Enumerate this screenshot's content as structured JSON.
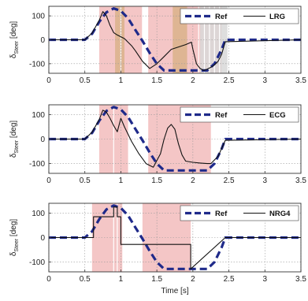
{
  "chart_data": [
    {
      "type": "line",
      "ylabel": "δ_Steer [deg]",
      "ylabel_main": "δ",
      "ylabel_sub": "Steer",
      "ylabel_unit": " [deg]",
      "xlim": [
        0,
        3.5
      ],
      "ylim": [
        -140,
        140
      ],
      "xticks": [
        "0",
        "0.5",
        "1",
        "1.5",
        "2",
        "2.5",
        "3",
        "3.5"
      ],
      "yticks": [
        "100",
        "0",
        "-100"
      ],
      "legend": {
        "position": "top-right",
        "entries": [
          "Ref",
          "LRG"
        ]
      },
      "grid": true,
      "series": [
        {
          "name": "Ref",
          "style": "dashed",
          "color": "#1f2a8a",
          "x": [
            0,
            0.5,
            0.6,
            0.7,
            0.8,
            0.9,
            1.0,
            1.1,
            1.2,
            1.3,
            1.4,
            1.5,
            1.6,
            2.2,
            2.3,
            2.4,
            2.45,
            3.5
          ],
          "y": [
            0,
            0,
            25,
            75,
            115,
            131,
            121,
            90,
            42,
            -5,
            -55,
            -100,
            -128,
            -128,
            -100,
            -40,
            0,
            0
          ]
        },
        {
          "name": "LRG",
          "style": "solid",
          "color": "#111111",
          "x": [
            0,
            0.5,
            0.6,
            0.7,
            0.75,
            0.8,
            0.85,
            0.9,
            0.95,
            1.05,
            1.15,
            1.2,
            1.3,
            1.4,
            1.5,
            1.6,
            1.7,
            1.8,
            1.9,
            1.98,
            2.0,
            2.05,
            2.1,
            2.15,
            2.2,
            2.25,
            2.3,
            2.35,
            2.4,
            2.45,
            3.5
          ],
          "y": [
            0,
            0,
            28,
            82,
            118,
            100,
            60,
            30,
            20,
            5,
            -25,
            -45,
            -90,
            -120,
            -100,
            -70,
            -40,
            -30,
            -20,
            -10,
            -40,
            -100,
            -120,
            -128,
            -123,
            -115,
            -105,
            -90,
            -60,
            -8,
            0
          ]
        }
      ],
      "bands": [
        {
          "x": [
            0.7,
            1.3
          ],
          "color": "#f2bcbc"
        },
        {
          "x": [
            0.92,
            1.05
          ],
          "color": "#d9b28a"
        },
        {
          "x": [
            1.38,
            2.4
          ],
          "color": "#f2bcbc"
        },
        {
          "x": [
            1.72,
            1.92
          ],
          "color": "#d9b28a"
        },
        {
          "x": [
            2.1,
            2.48
          ],
          "color": "#d8d8d8"
        }
      ],
      "vlines": [
        1.0,
        1.3,
        2.08,
        2.16,
        2.23,
        2.3,
        2.37
      ]
    },
    {
      "type": "line",
      "ylabel": "δ_Steer [deg]",
      "ylabel_main": "δ",
      "ylabel_sub": "Steer",
      "ylabel_unit": " [deg]",
      "xlim": [
        0,
        3.5
      ],
      "ylim": [
        -140,
        140
      ],
      "xticks": [
        "0",
        "0.5",
        "1",
        "1.5",
        "2",
        "2.5",
        "3",
        "3.5"
      ],
      "yticks": [
        "100",
        "0",
        "-100"
      ],
      "legend": {
        "position": "top-right",
        "entries": [
          "Ref",
          "ECG"
        ]
      },
      "grid": true,
      "series": [
        {
          "name": "Ref",
          "style": "dashed",
          "color": "#1f2a8a",
          "x": [
            0,
            0.5,
            0.6,
            0.7,
            0.8,
            0.9,
            1.0,
            1.1,
            1.2,
            1.3,
            1.4,
            1.5,
            1.6,
            2.2,
            2.3,
            2.4,
            2.45,
            3.5
          ],
          "y": [
            0,
            0,
            25,
            75,
            115,
            131,
            121,
            90,
            42,
            -5,
            -55,
            -100,
            -128,
            -128,
            -100,
            -40,
            0,
            0
          ]
        },
        {
          "name": "ECG",
          "style": "solid",
          "color": "#111111",
          "x": [
            0,
            0.5,
            0.6,
            0.7,
            0.75,
            0.8,
            0.85,
            0.9,
            0.95,
            1.0,
            1.05,
            1.15,
            1.25,
            1.35,
            1.45,
            1.55,
            1.6,
            1.65,
            1.7,
            1.75,
            1.8,
            1.85,
            1.9,
            2.0,
            2.1,
            2.2,
            2.25,
            2.35,
            2.45,
            3.5
          ],
          "y": [
            0,
            0,
            28,
            80,
            118,
            110,
            85,
            55,
            30,
            85,
            50,
            -10,
            -60,
            -100,
            -115,
            -60,
            0,
            45,
            60,
            40,
            -20,
            -65,
            -90,
            -95,
            -98,
            -100,
            -100,
            -70,
            -5,
            0
          ]
        }
      ],
      "bands": [
        {
          "x": [
            0.7,
            1.1
          ],
          "color": "#f2bcbc"
        },
        {
          "x": [
            1.38,
            2.25
          ],
          "color": "#f2bcbc"
        }
      ],
      "vlines": [
        0.9
      ]
    },
    {
      "type": "line",
      "ylabel": "δ_Steer [deg]",
      "ylabel_main": "δ",
      "ylabel_sub": "Steer",
      "ylabel_unit": " [deg]",
      "xlabel": "Time [s]",
      "xlim": [
        0,
        3.5
      ],
      "ylim": [
        -140,
        140
      ],
      "xticks": [
        "0",
        "0.5",
        "1",
        "1.5",
        "2",
        "2.5",
        "3",
        "3.5"
      ],
      "yticks": [
        "100",
        "0",
        "-100"
      ],
      "legend": {
        "position": "top-right",
        "entries": [
          "Ref",
          "NRG4"
        ]
      },
      "grid": true,
      "series": [
        {
          "name": "Ref",
          "style": "dashed",
          "color": "#1f2a8a",
          "x": [
            0,
            0.5,
            0.6,
            0.7,
            0.8,
            0.9,
            1.0,
            1.1,
            1.2,
            1.3,
            1.4,
            1.5,
            1.6,
            2.2,
            2.3,
            2.4,
            2.45,
            3.5
          ],
          "y": [
            0,
            0,
            25,
            75,
            115,
            131,
            121,
            90,
            42,
            -5,
            -55,
            -100,
            -128,
            -128,
            -100,
            -40,
            0,
            0
          ]
        },
        {
          "name": "NRG4",
          "style": "solid",
          "color": "#111111",
          "x": [
            0,
            0.62,
            0.62,
            0.9,
            0.9,
            0.95,
            0.95,
            1.0,
            1.0,
            1.3,
            1.3,
            1.97,
            1.97,
            2.45,
            3.5
          ],
          "y": [
            0,
            0,
            85,
            85,
            125,
            125,
            85,
            85,
            -28,
            -28,
            -28,
            -28,
            -128,
            0,
            0
          ]
        }
      ],
      "bands": [
        {
          "x": [
            0.6,
            1.02
          ],
          "color": "#f2bcbc"
        },
        {
          "x": [
            1.3,
            1.97
          ],
          "color": "#f2bcbc"
        }
      ],
      "vlines": [
        0.9,
        0.95
      ]
    }
  ]
}
